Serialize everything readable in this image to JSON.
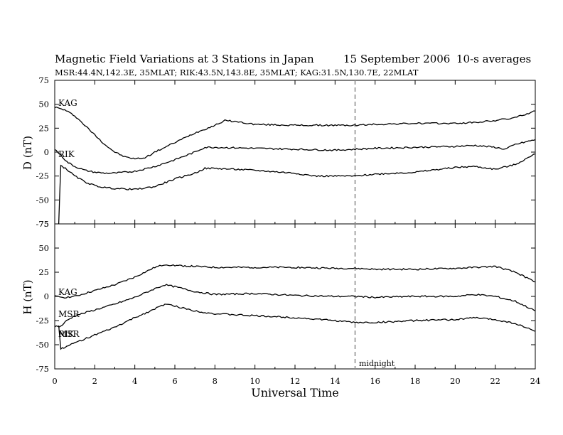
{
  "header": {
    "title": "Magnetic Field Variations at 3 Stations in Japan",
    "date": "15 September 2006",
    "averaging": "10-s averages",
    "stations": "MSR:44.4N,142.3E, 35MLAT;   RIK:43.5N,143.8E, 35MLAT;   KAG:31.5N,130.7E, 22MLAT"
  },
  "chart_data": [
    {
      "type": "line",
      "ylabel": "D (nT)",
      "ylim": [
        -75,
        75
      ],
      "yticks": [
        75,
        50,
        25,
        0,
        -25,
        -50,
        -75
      ],
      "xlim": [
        0,
        24
      ],
      "xticks": [
        0,
        2,
        4,
        6,
        8,
        10,
        12,
        14,
        16,
        18,
        20,
        22,
        24
      ],
      "series": [
        {
          "name": "KAG",
          "x": [
            0,
            0.5,
            1,
            1.5,
            2,
            2.5,
            3,
            3.5,
            4,
            4.5,
            5,
            6,
            7,
            8,
            8.5,
            9,
            10,
            12,
            14,
            15,
            16,
            18,
            20,
            21,
            22,
            23,
            24
          ],
          "values": [
            47,
            44,
            38,
            28,
            18,
            8,
            0,
            -5,
            -7,
            -6,
            0,
            10,
            20,
            28,
            33,
            32,
            29,
            28,
            28,
            28,
            29,
            30,
            30,
            31,
            33,
            36,
            43
          ]
        },
        {
          "name": "RIK",
          "x": [
            0,
            0.3,
            0.6,
            1,
            1.5,
            2,
            2.5,
            3,
            4,
            5,
            6,
            7,
            7.5,
            8,
            10,
            12,
            14,
            15,
            16,
            18,
            20,
            21,
            22,
            22.5,
            23,
            24
          ],
          "values": [
            3,
            -3,
            -10,
            -15,
            -19,
            -21,
            -22,
            -22,
            -20,
            -15,
            -8,
            0,
            5,
            5,
            4,
            3,
            2,
            3,
            4,
            5,
            6,
            7,
            5,
            3,
            8,
            13
          ]
        },
        {
          "name": "MSR",
          "x": [
            0.2,
            0.3,
            0.6,
            1,
            1.5,
            2,
            2.5,
            3,
            4,
            5,
            6,
            7,
            7.5,
            8,
            10,
            12,
            13,
            14,
            15,
            16,
            18,
            20,
            21,
            22,
            23,
            24
          ],
          "values": [
            -75,
            -14,
            -18,
            -25,
            -31,
            -35,
            -37,
            -38,
            -39,
            -36,
            -28,
            -22,
            -17,
            -17,
            -19,
            -22,
            -25,
            -25,
            -25,
            -23,
            -21,
            -16,
            -15,
            -18,
            -13,
            -2
          ]
        }
      ],
      "annotations": [
        "KAG",
        "RIK"
      ]
    },
    {
      "type": "line",
      "ylabel": "H (nT)",
      "ylim": [
        -75,
        75
      ],
      "yticks": [
        75,
        50,
        25,
        0,
        -25,
        -50,
        -75
      ],
      "xlim": [
        0,
        24
      ],
      "xticks": [
        0,
        2,
        4,
        6,
        8,
        10,
        12,
        14,
        16,
        18,
        20,
        22,
        24
      ],
      "xlabel": "Universal Time",
      "series": [
        {
          "name": "KAG",
          "x": [
            0,
            0.5,
            1,
            1.5,
            2,
            3,
            4,
            5,
            5.5,
            6,
            8,
            10,
            12,
            14,
            15,
            16,
            18,
            20,
            21,
            22,
            23,
            24
          ],
          "values": [
            0,
            -1,
            0,
            3,
            6,
            12,
            20,
            30,
            33,
            32,
            30,
            30,
            30,
            29,
            29,
            28,
            28,
            29,
            30,
            31,
            25,
            15
          ]
        },
        {
          "name": "MSR",
          "x": [
            0,
            0.3,
            0.6,
            1,
            2,
            3,
            4,
            5,
            5.5,
            6,
            7,
            8,
            10,
            12,
            14,
            15,
            16,
            18,
            20,
            21,
            22,
            23,
            24
          ],
          "values": [
            -31,
            -31,
            -25,
            -20,
            -14,
            -8,
            -1,
            8,
            12,
            10,
            5,
            2,
            3,
            1,
            0,
            0,
            -1,
            0,
            0,
            2,
            0,
            -5,
            -15
          ]
        },
        {
          "name": "RIK",
          "x": [
            0.2,
            0.3,
            0.6,
            1,
            2,
            3,
            4,
            5,
            5.5,
            6,
            7,
            8,
            10,
            12,
            14,
            15,
            16,
            18,
            20,
            21,
            22,
            23,
            24
          ],
          "values": [
            -30,
            -54,
            -52,
            -48,
            -40,
            -32,
            -22,
            -13,
            -8,
            -10,
            -15,
            -18,
            -20,
            -22,
            -25,
            -27,
            -27,
            -25,
            -24,
            -22,
            -24,
            -28,
            -36
          ]
        }
      ],
      "annotations": [
        "KAG",
        "MSR",
        "RIK",
        "MSR"
      ]
    }
  ],
  "marker": {
    "x": 15,
    "label": "midnight"
  }
}
